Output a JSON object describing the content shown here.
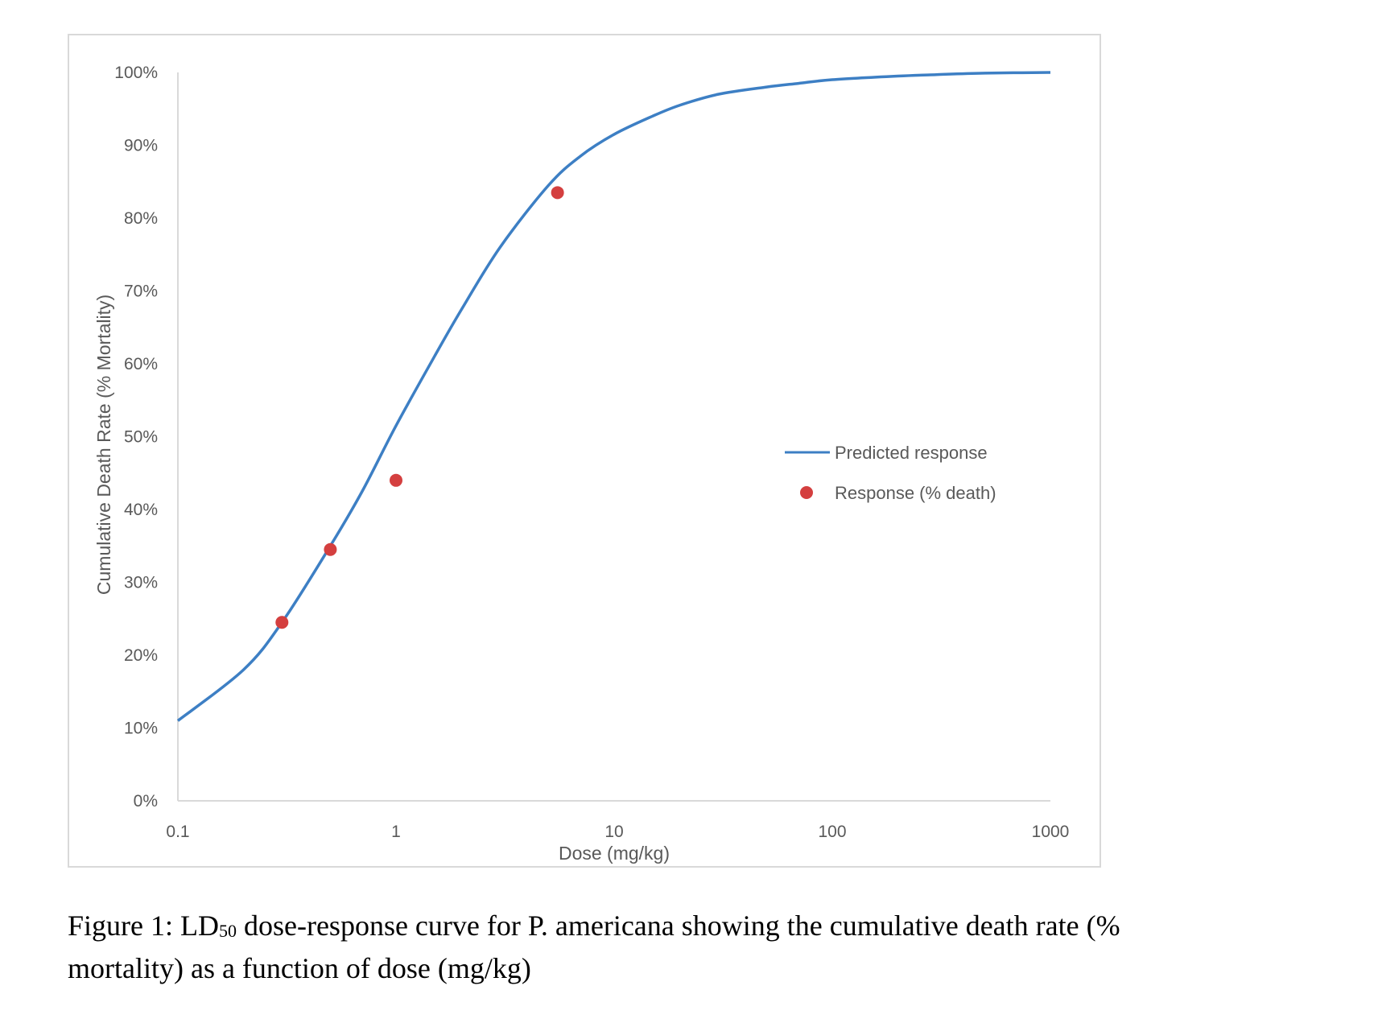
{
  "chart_data": {
    "type": "scatter",
    "title": "",
    "xlabel": "Dose (mg/kg)",
    "ylabel": "Cumulative Death Rate (% Mortality)",
    "x_scale": "log",
    "xlim": [
      0.1,
      1000
    ],
    "ylim": [
      0,
      100
    ],
    "x_ticks": [
      "0.1",
      "1",
      "10",
      "100",
      "1000"
    ],
    "y_ticks": [
      "0%",
      "10%",
      "20%",
      "30%",
      "40%",
      "50%",
      "60%",
      "70%",
      "80%",
      "90%",
      "100%"
    ],
    "grid": false,
    "legend_position": "right",
    "series": [
      {
        "name": "Predicted response",
        "kind": "line",
        "color": "#3d7fc4",
        "x": [
          0.1,
          0.2,
          0.3,
          0.5,
          0.7,
          1,
          1.5,
          2,
          3,
          5,
          7,
          10,
          15,
          20,
          30,
          50,
          70,
          100,
          200,
          300,
          500,
          1000
        ],
        "y": [
          11,
          18,
          24.5,
          35,
          42.5,
          51.5,
          61,
          67.5,
          76,
          84.5,
          88.5,
          91.5,
          94,
          95.5,
          97,
          98,
          98.5,
          99,
          99.5,
          99.7,
          99.9,
          100
        ]
      },
      {
        "name": "Response (% death)",
        "kind": "scatter",
        "color": "#d43f3f",
        "x": [
          0.3,
          0.5,
          1,
          5.5
        ],
        "y": [
          24.5,
          34.5,
          44,
          83.5
        ]
      }
    ]
  },
  "caption": {
    "line1_prefix": "Figure 1: LD",
    "line1_subscript": "50",
    "line1_suffix": " dose-response curve for P. americana showing the cumulative death rate (%",
    "line2": "mortality) as a function of dose (mg/kg)"
  }
}
